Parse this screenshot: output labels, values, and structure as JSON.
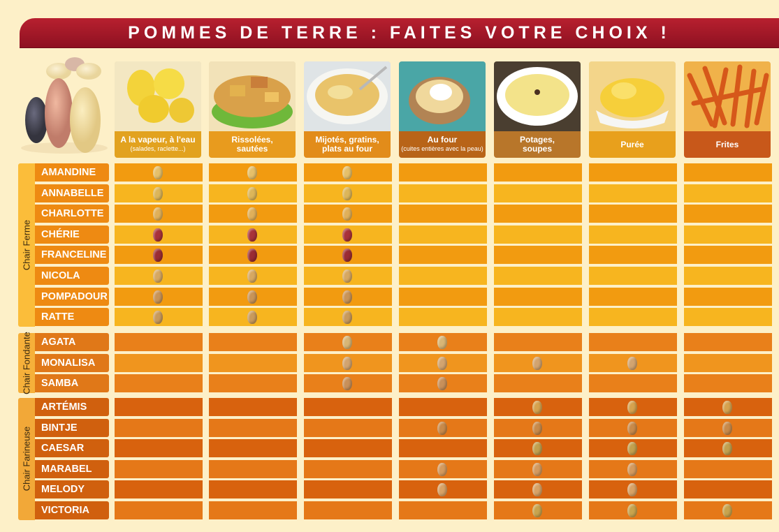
{
  "title": "POMMES DE TERRE : FAITES VOTRE CHOIX !",
  "columns": [
    {
      "label1": "A la vapeur, à l'eau",
      "label2": "(salades, raclette...)",
      "color": "#e2a21f"
    },
    {
      "label1": "Rissolées,",
      "label2": "sautées",
      "color": "#e89b1e"
    },
    {
      "label1": "Mijotés, gratins,",
      "label2": "plats au four",
      "color": "#e28c1a"
    },
    {
      "label1": "Au four",
      "label2": "(cuites entières avec la peau)",
      "color": "#b86418"
    },
    {
      "label1": "Potages,",
      "label2": "soupes",
      "color": "#b8762a"
    },
    {
      "label1": "Purée",
      "label2": "",
      "color": "#e8a01c"
    },
    {
      "label1": "Frites",
      "label2": "",
      "color": "#c8581a"
    }
  ],
  "groups": [
    {
      "name": "Chair Ferme",
      "side_color": "#fbbd3a",
      "cell_colors": [
        "#f29b10",
        "#f7b51f"
      ],
      "name_color": "#ee8a12",
      "rows": [
        {
          "name": "AMANDINE",
          "marks": [
            1,
            1,
            1,
            0,
            0,
            0,
            0
          ],
          "potato": "#e6c06a"
        },
        {
          "name": "ANNABELLE",
          "marks": [
            1,
            1,
            1,
            0,
            0,
            0,
            0
          ],
          "potato": "#dcb65a"
        },
        {
          "name": "CHARLOTTE",
          "marks": [
            1,
            1,
            1,
            0,
            0,
            0,
            0
          ],
          "potato": "#e0b05a"
        },
        {
          "name": "CHÉRIE",
          "marks": [
            1,
            1,
            1,
            0,
            0,
            0,
            0
          ],
          "potato": "#a8323a"
        },
        {
          "name": "FRANCELINE",
          "marks": [
            1,
            1,
            1,
            0,
            0,
            0,
            0
          ],
          "potato": "#9a2c34"
        },
        {
          "name": "NICOLA",
          "marks": [
            1,
            1,
            1,
            0,
            0,
            0,
            0
          ],
          "potato": "#d6a862"
        },
        {
          "name": "POMPADOUR",
          "marks": [
            1,
            1,
            1,
            0,
            0,
            0,
            0
          ],
          "potato": "#c89458"
        },
        {
          "name": "RATTE",
          "marks": [
            1,
            1,
            1,
            0,
            0,
            0,
            0
          ],
          "potato": "#c89a5c"
        }
      ]
    },
    {
      "name": "Chair Fondante",
      "side_color": "#f6b03a",
      "cell_colors": [
        "#e9801a",
        "#f0951e"
      ],
      "name_color": "#e07818",
      "rows": [
        {
          "name": "AGATA",
          "marks": [
            0,
            0,
            1,
            1,
            0,
            0,
            0
          ],
          "potato": "#d8b676"
        },
        {
          "name": "MONALISA",
          "marks": [
            0,
            0,
            1,
            1,
            1,
            1,
            0
          ],
          "potato": "#d2a470"
        },
        {
          "name": "SAMBA",
          "marks": [
            0,
            0,
            1,
            1,
            0,
            0,
            0
          ],
          "potato": "#c8905a"
        }
      ]
    },
    {
      "name": "Chair Farineuse",
      "side_color": "#f2a838",
      "cell_colors": [
        "#d8620e",
        "#e57818"
      ],
      "name_color": "#d0600e",
      "rows": [
        {
          "name": "ARTÉMIS",
          "marks": [
            0,
            0,
            0,
            0,
            1,
            1,
            1
          ],
          "potato": "#d6a24e"
        },
        {
          "name": "BINTJE",
          "marks": [
            0,
            0,
            0,
            1,
            1,
            1,
            1
          ],
          "potato": "#c88a4a"
        },
        {
          "name": "CAESAR",
          "marks": [
            0,
            0,
            0,
            0,
            1,
            1,
            1
          ],
          "potato": "#c2a04e"
        },
        {
          "name": "MARABEL",
          "marks": [
            0,
            0,
            0,
            1,
            1,
            1,
            0
          ],
          "potato": "#d49a5e"
        },
        {
          "name": "MELODY",
          "marks": [
            0,
            0,
            0,
            1,
            1,
            1,
            0
          ],
          "potato": "#d8a266"
        },
        {
          "name": "VICTORIA",
          "marks": [
            0,
            0,
            0,
            0,
            1,
            1,
            1
          ],
          "potato": "#c8a44e"
        }
      ]
    }
  ]
}
